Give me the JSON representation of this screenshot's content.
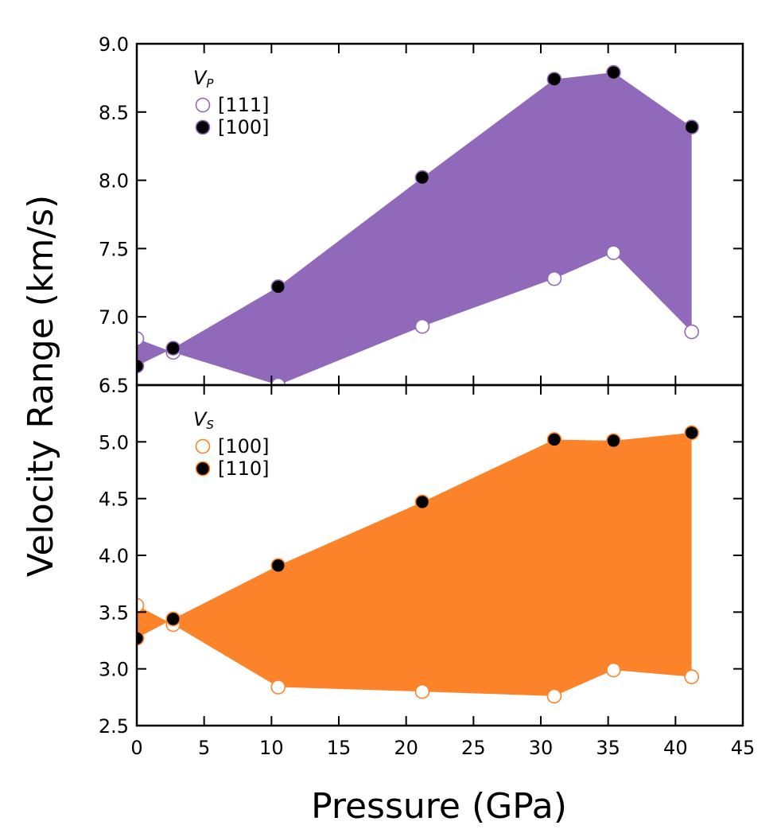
{
  "chart_data": [
    {
      "type": "area",
      "panel": "top",
      "legend_title_main": "V",
      "legend_title_sub": "P",
      "ylabel": "Velocity Range (km/s)",
      "xlabel": "Pressure (GPa)",
      "xlim": [
        0,
        45
      ],
      "ylim": [
        6.5,
        9.0
      ],
      "yticks": [
        "6.5",
        "7.0",
        "7.5",
        "8.0",
        "8.5",
        "9.0"
      ],
      "fill_color": "#9169BB",
      "series": [
        {
          "name": "[111]",
          "marker": "open",
          "edge_color": "#9169BB",
          "points": [
            [
              0,
              6.84
            ],
            [
              2.7,
              6.74
            ],
            [
              10.5,
              6.5
            ],
            [
              21.2,
              6.93
            ],
            [
              31.0,
              7.28
            ],
            [
              35.4,
              7.47
            ],
            [
              41.2,
              6.89
            ]
          ]
        },
        {
          "name": "[100]",
          "marker": "filled",
          "edge_color": "#9169BB",
          "points": [
            [
              0,
              6.64
            ],
            [
              2.7,
              6.77
            ],
            [
              10.5,
              7.22
            ],
            [
              21.2,
              8.02
            ],
            [
              31.0,
              8.74
            ],
            [
              35.4,
              8.79
            ],
            [
              41.2,
              8.39
            ]
          ]
        }
      ]
    },
    {
      "type": "area",
      "panel": "bottom",
      "legend_title_main": "V",
      "legend_title_sub": "S",
      "xlabel": "Pressure (GPa)",
      "xlim": [
        0,
        45
      ],
      "ylim": [
        2.5,
        5.5
      ],
      "xticks": [
        "0",
        "5",
        "10",
        "15",
        "20",
        "25",
        "30",
        "35",
        "40",
        "45"
      ],
      "yticks": [
        "2.5",
        "3.0",
        "3.5",
        "4.0",
        "4.5",
        "5.0"
      ],
      "fill_color": "#FC8329",
      "series": [
        {
          "name": "[100]",
          "marker": "open",
          "edge_color": "#FC8329",
          "points": [
            [
              0,
              3.56
            ],
            [
              2.7,
              3.39
            ],
            [
              10.5,
              2.84
            ],
            [
              21.2,
              2.8
            ],
            [
              31.0,
              2.76
            ],
            [
              35.4,
              2.99
            ],
            [
              41.2,
              2.93
            ]
          ]
        },
        {
          "name": "[110]",
          "marker": "filled",
          "edge_color": "#FC8329",
          "points": [
            [
              0,
              3.27
            ],
            [
              2.7,
              3.44
            ],
            [
              10.5,
              3.91
            ],
            [
              21.2,
              4.47
            ],
            [
              31.0,
              5.02
            ],
            [
              35.4,
              5.01
            ],
            [
              41.2,
              5.08
            ]
          ]
        }
      ]
    }
  ]
}
